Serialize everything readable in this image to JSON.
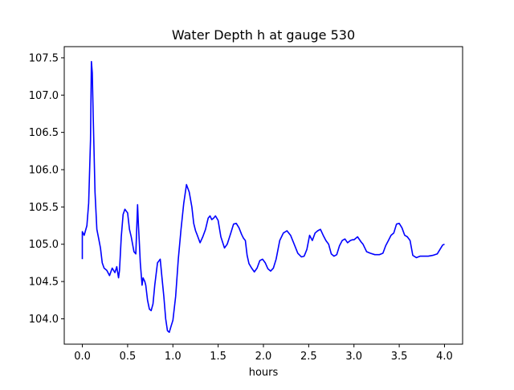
{
  "chart_data": {
    "type": "line",
    "title": "Water Depth h at gauge 530",
    "xlabel": "hours",
    "ylabel": "",
    "xlim": [
      -0.2,
      4.2
    ],
    "ylim": [
      103.66,
      107.65
    ],
    "x_ticks": [
      0.0,
      0.5,
      1.0,
      1.5,
      2.0,
      2.5,
      3.0,
      3.5,
      4.0
    ],
    "x_tick_labels": [
      "0.0",
      "0.5",
      "1.0",
      "1.5",
      "2.0",
      "2.5",
      "3.0",
      "3.5",
      "4.0"
    ],
    "y_ticks": [
      104.0,
      104.5,
      105.0,
      105.5,
      106.0,
      106.5,
      107.0,
      107.5
    ],
    "y_tick_labels": [
      "104.0",
      "104.5",
      "105.0",
      "105.5",
      "106.0",
      "106.5",
      "107.0",
      "107.5"
    ],
    "grid": false,
    "series": [
      {
        "color": "#0000ff",
        "x": [
          0.0,
          0.0,
          0.02,
          0.05,
          0.07,
          0.09,
          0.1,
          0.11,
          0.12,
          0.14,
          0.16,
          0.18,
          0.2,
          0.22,
          0.24,
          0.27,
          0.3,
          0.33,
          0.36,
          0.38,
          0.4,
          0.41,
          0.43,
          0.45,
          0.47,
          0.5,
          0.52,
          0.54,
          0.57,
          0.59,
          0.61,
          0.62,
          0.63,
          0.64,
          0.66,
          0.67,
          0.69,
          0.7,
          0.72,
          0.74,
          0.76,
          0.78,
          0.8,
          0.83,
          0.86,
          0.88,
          0.9,
          0.92,
          0.94,
          0.96,
          0.98,
          1.0,
          1.03,
          1.06,
          1.09,
          1.12,
          1.15,
          1.18,
          1.21,
          1.23,
          1.25,
          1.27,
          1.3,
          1.33,
          1.36,
          1.39,
          1.41,
          1.43,
          1.45,
          1.47,
          1.5,
          1.53,
          1.57,
          1.6,
          1.64,
          1.67,
          1.7,
          1.73,
          1.76,
          1.78,
          1.8,
          1.82,
          1.84,
          1.87,
          1.9,
          1.93,
          1.96,
          1.99,
          2.02,
          2.05,
          2.08,
          2.11,
          2.14,
          2.18,
          2.22,
          2.26,
          2.3,
          2.34,
          2.38,
          2.42,
          2.45,
          2.48,
          2.51,
          2.54,
          2.57,
          2.6,
          2.63,
          2.66,
          2.69,
          2.72,
          2.75,
          2.78,
          2.81,
          2.84,
          2.87,
          2.9,
          2.93,
          2.96,
          2.98,
          3.0,
          3.04,
          3.08,
          3.1,
          3.14,
          3.18,
          3.23,
          3.28,
          3.32,
          3.35,
          3.38,
          3.41,
          3.44,
          3.47,
          3.5,
          3.53,
          3.56,
          3.59,
          3.62,
          3.65,
          3.69,
          3.73,
          3.77,
          3.82,
          3.87,
          3.92,
          3.96,
          3.98,
          4.0
        ],
        "y": [
          104.8,
          105.17,
          105.12,
          105.25,
          105.55,
          106.4,
          107.45,
          107.3,
          106.7,
          105.7,
          105.2,
          105.08,
          104.95,
          104.75,
          104.68,
          104.65,
          104.58,
          104.68,
          104.62,
          104.7,
          104.55,
          104.65,
          105.1,
          105.4,
          105.47,
          105.42,
          105.2,
          105.1,
          104.9,
          104.87,
          105.53,
          105.25,
          105.0,
          104.75,
          104.45,
          104.55,
          104.5,
          104.45,
          104.25,
          104.13,
          104.11,
          104.2,
          104.45,
          104.75,
          104.8,
          104.55,
          104.3,
          104.0,
          103.84,
          103.82,
          103.9,
          103.98,
          104.3,
          104.8,
          105.2,
          105.55,
          105.8,
          105.7,
          105.5,
          105.28,
          105.18,
          105.12,
          105.02,
          105.1,
          105.2,
          105.35,
          105.38,
          105.33,
          105.35,
          105.38,
          105.32,
          105.1,
          104.95,
          105.0,
          105.15,
          105.27,
          105.28,
          105.22,
          105.13,
          105.08,
          105.05,
          104.85,
          104.74,
          104.68,
          104.63,
          104.68,
          104.78,
          104.8,
          104.75,
          104.67,
          104.64,
          104.68,
          104.8,
          105.05,
          105.15,
          105.18,
          105.12,
          105.0,
          104.88,
          104.83,
          104.84,
          104.93,
          105.12,
          105.05,
          105.15,
          105.18,
          105.2,
          105.12,
          105.05,
          105.0,
          104.87,
          104.84,
          104.86,
          104.98,
          105.05,
          105.07,
          105.02,
          105.05,
          105.06,
          105.06,
          105.1,
          105.03,
          105.0,
          104.9,
          104.88,
          104.86,
          104.86,
          104.88,
          104.98,
          105.05,
          105.12,
          105.15,
          105.27,
          105.28,
          105.22,
          105.12,
          105.1,
          105.05,
          104.85,
          104.82,
          104.84,
          104.84,
          104.84,
          104.85,
          104.87,
          104.95,
          104.99,
          105.0
        ]
      }
    ]
  }
}
